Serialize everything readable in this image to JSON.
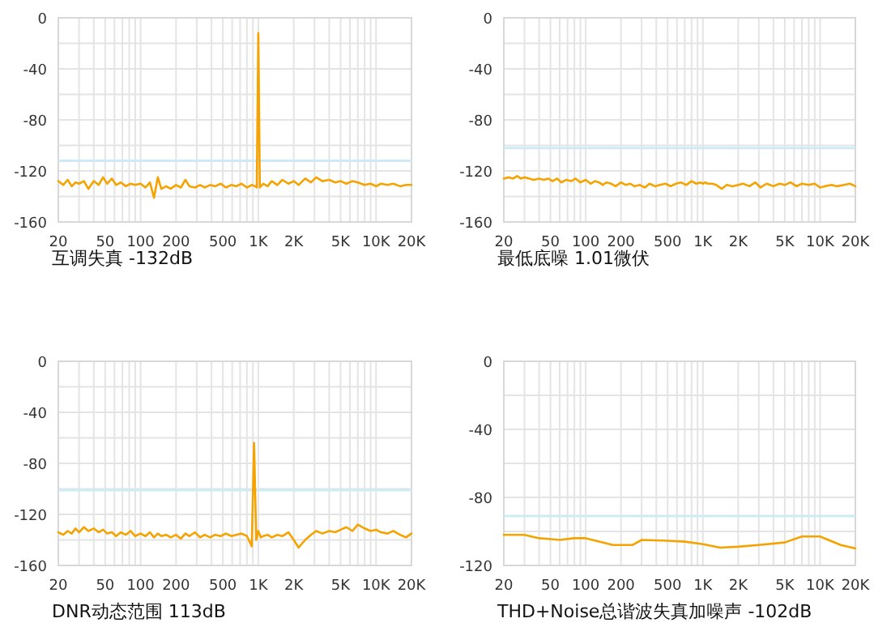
{
  "chart_data": [
    {
      "type": "line",
      "title": "互调失真 -132dB",
      "log": "x",
      "grid": true,
      "xlim": [
        20,
        20000
      ],
      "ylim": [
        -160,
        0
      ],
      "xticks": [
        20,
        {
          "value": 30,
          "label": null
        },
        {
          "value": 40,
          "label": null
        },
        50,
        {
          "value": 60,
          "label": null
        },
        {
          "value": 70,
          "label": null
        },
        {
          "value": 80,
          "label": null
        },
        {
          "value": 90,
          "label": null
        },
        100,
        200,
        {
          "value": 300,
          "label": null
        },
        {
          "value": 400,
          "label": null
        },
        500,
        {
          "value": 600,
          "label": null
        },
        {
          "value": 700,
          "label": null
        },
        {
          "value": 800,
          "label": null
        },
        {
          "value": 900,
          "label": null
        },
        {
          "value": 1000,
          "label": "1K"
        },
        {
          "value": 2000,
          "label": "2K"
        },
        {
          "value": 3000,
          "label": null
        },
        {
          "value": 4000,
          "label": null
        },
        {
          "value": 5000,
          "label": "5K"
        },
        {
          "value": 6000,
          "label": null
        },
        {
          "value": 7000,
          "label": null
        },
        {
          "value": 8000,
          "label": null
        },
        {
          "value": 9000,
          "label": null
        },
        {
          "value": 10000,
          "label": "10K"
        },
        {
          "value": 20000,
          "label": "20K"
        }
      ],
      "yticks": [
        -160,
        {
          "value": -140,
          "label": null
        },
        -120,
        {
          "value": -100,
          "label": null
        },
        -80,
        {
          "value": -60,
          "label": null
        },
        -40,
        {
          "value": -20,
          "label": null
        },
        0
      ],
      "ref_lines": [
        {
          "axis": "y",
          "value": -112,
          "color": "#cdeaf7"
        }
      ],
      "series": [
        {
          "color": "#f5a300",
          "x": [
            20,
            22,
            24,
            26,
            28,
            30,
            33,
            36,
            40,
            44,
            48,
            52,
            57,
            62,
            68,
            75,
            82,
            90,
            100,
            110,
            120,
            130,
            140,
            150,
            165,
            180,
            200,
            220,
            240,
            260,
            290,
            320,
            350,
            390,
            430,
            480,
            530,
            590,
            650,
            720,
            800,
            880,
            940,
            970,
            1000,
            1030,
            1100,
            1200,
            1300,
            1450,
            1600,
            1800,
            2000,
            2200,
            2500,
            2800,
            3100,
            3500,
            4000,
            4500,
            5000,
            5600,
            6300,
            7000,
            8000,
            9000,
            10000,
            11000,
            12500,
            14000,
            16000,
            18000,
            20000
          ],
          "values": [
            -128,
            -131,
            -127,
            -132,
            -129,
            -130,
            -128,
            -134,
            -128,
            -131,
            -125,
            -130,
            -126,
            -131,
            -129,
            -132,
            -130,
            -131,
            -130,
            -133,
            -129,
            -141,
            -125,
            -134,
            -132,
            -134,
            -131,
            -133,
            -127,
            -132,
            -133,
            -131,
            -133,
            -131,
            -132,
            -130,
            -133,
            -131,
            -132,
            -130,
            -133,
            -131,
            -132,
            -133,
            -12,
            -133,
            -130,
            -132,
            -128,
            -131,
            -127,
            -130,
            -128,
            -131,
            -126,
            -129,
            -125,
            -128,
            -127,
            -129,
            -128,
            -130,
            -128,
            -129,
            -131,
            -130,
            -132,
            -130,
            -131,
            -130,
            -132,
            -131,
            -131
          ]
        }
      ]
    },
    {
      "type": "line",
      "title": "最低底噪 1.01微伏",
      "log": "x",
      "grid": true,
      "xlim": [
        20,
        20000
      ],
      "ylim": [
        -160,
        0
      ],
      "xticks": [
        20,
        {
          "value": 30,
          "label": null
        },
        {
          "value": 40,
          "label": null
        },
        50,
        {
          "value": 60,
          "label": null
        },
        {
          "value": 70,
          "label": null
        },
        {
          "value": 80,
          "label": null
        },
        {
          "value": 90,
          "label": null
        },
        100,
        200,
        {
          "value": 300,
          "label": null
        },
        {
          "value": 400,
          "label": null
        },
        500,
        {
          "value": 600,
          "label": null
        },
        {
          "value": 700,
          "label": null
        },
        {
          "value": 800,
          "label": null
        },
        {
          "value": 900,
          "label": null
        },
        {
          "value": 1000,
          "label": "1K"
        },
        {
          "value": 2000,
          "label": "2K"
        },
        {
          "value": 3000,
          "label": null
        },
        {
          "value": 4000,
          "label": null
        },
        {
          "value": 5000,
          "label": "5K"
        },
        {
          "value": 6000,
          "label": null
        },
        {
          "value": 7000,
          "label": null
        },
        {
          "value": 8000,
          "label": null
        },
        {
          "value": 9000,
          "label": null
        },
        {
          "value": 10000,
          "label": "10K"
        },
        {
          "value": 20000,
          "label": "20K"
        }
      ],
      "yticks": [
        -160,
        {
          "value": -140,
          "label": null
        },
        -120,
        {
          "value": -100,
          "label": null
        },
        -80,
        {
          "value": -60,
          "label": null
        },
        -40,
        {
          "value": -20,
          "label": null
        },
        0
      ],
      "ref_lines": [
        {
          "axis": "y",
          "value": -102,
          "color": "#cdeaf7"
        }
      ],
      "series": [
        {
          "color": "#f5a300",
          "x": [
            20,
            22,
            24,
            26,
            28,
            30,
            33,
            36,
            40,
            44,
            48,
            52,
            57,
            62,
            68,
            75,
            82,
            90,
            100,
            110,
            120,
            130,
            140,
            150,
            165,
            180,
            200,
            220,
            240,
            260,
            290,
            320,
            350,
            390,
            430,
            480,
            530,
            590,
            650,
            720,
            800,
            880,
            950,
            1000,
            1050,
            1100,
            1200,
            1300,
            1450,
            1600,
            1800,
            2000,
            2200,
            2500,
            2800,
            3100,
            3500,
            4000,
            4500,
            5000,
            5600,
            6300,
            7000,
            8000,
            9000,
            10000,
            11000,
            12500,
            14000,
            16000,
            18000,
            20000
          ],
          "values": [
            -126,
            -125,
            -126,
            -124,
            -126,
            -125,
            -126,
            -127,
            -126,
            -127,
            -126,
            -128,
            -126,
            -129,
            -127,
            -128,
            -126,
            -129,
            -127,
            -130,
            -128,
            -129,
            -131,
            -129,
            -130,
            -132,
            -129,
            -131,
            -130,
            -132,
            -131,
            -133,
            -130,
            -132,
            -131,
            -130,
            -132,
            -130,
            -129,
            -131,
            -128,
            -130,
            -129,
            -130,
            -129,
            -130,
            -130,
            -131,
            -134,
            -131,
            -132,
            -131,
            -130,
            -132,
            -129,
            -133,
            -130,
            -132,
            -130,
            -131,
            -129,
            -132,
            -130,
            -131,
            -130,
            -133,
            -132,
            -131,
            -132,
            -131,
            -130,
            -132
          ]
        }
      ]
    },
    {
      "type": "line",
      "title": "DNR动态范围 113dB",
      "log": "x",
      "grid": true,
      "xlim": [
        20,
        20000
      ],
      "ylim": [
        -160,
        0
      ],
      "xticks": [
        20,
        {
          "value": 30,
          "label": null
        },
        {
          "value": 40,
          "label": null
        },
        50,
        {
          "value": 60,
          "label": null
        },
        {
          "value": 70,
          "label": null
        },
        {
          "value": 80,
          "label": null
        },
        {
          "value": 90,
          "label": null
        },
        100,
        200,
        {
          "value": 300,
          "label": null
        },
        {
          "value": 400,
          "label": null
        },
        500,
        {
          "value": 600,
          "label": null
        },
        {
          "value": 700,
          "label": null
        },
        {
          "value": 800,
          "label": null
        },
        {
          "value": 900,
          "label": null
        },
        {
          "value": 1000,
          "label": "1K"
        },
        {
          "value": 2000,
          "label": "2K"
        },
        {
          "value": 3000,
          "label": null
        },
        {
          "value": 4000,
          "label": null
        },
        {
          "value": 5000,
          "label": "5K"
        },
        {
          "value": 6000,
          "label": null
        },
        {
          "value": 7000,
          "label": null
        },
        {
          "value": 8000,
          "label": null
        },
        {
          "value": 9000,
          "label": null
        },
        {
          "value": 10000,
          "label": "10K"
        },
        {
          "value": 20000,
          "label": "20K"
        }
      ],
      "yticks": [
        -160,
        {
          "value": -140,
          "label": null
        },
        -120,
        {
          "value": -100,
          "label": null
        },
        -80,
        {
          "value": -60,
          "label": null
        },
        -40,
        {
          "value": -20,
          "label": null
        },
        0
      ],
      "ref_lines": [
        {
          "axis": "y",
          "value": -101,
          "color": "#cdeaf7"
        }
      ],
      "series": [
        {
          "color": "#f5a300",
          "x": [
            20,
            22,
            24,
            26,
            28,
            30,
            33,
            36,
            40,
            44,
            48,
            52,
            57,
            62,
            68,
            75,
            82,
            90,
            100,
            110,
            120,
            130,
            140,
            150,
            165,
            180,
            200,
            220,
            240,
            260,
            290,
            320,
            350,
            390,
            430,
            480,
            530,
            590,
            650,
            720,
            800,
            880,
            920,
            960,
            1000,
            1050,
            1100,
            1200,
            1300,
            1450,
            1600,
            1800,
            2000,
            2200,
            2500,
            2800,
            3100,
            3500,
            4000,
            4500,
            5000,
            5600,
            6300,
            7000,
            8000,
            9000,
            10000,
            11000,
            12500,
            14000,
            16000,
            18000,
            20000
          ],
          "values": [
            -134,
            -136,
            -133,
            -135,
            -131,
            -134,
            -130,
            -133,
            -131,
            -134,
            -132,
            -135,
            -134,
            -137,
            -134,
            -136,
            -133,
            -137,
            -135,
            -137,
            -134,
            -138,
            -135,
            -137,
            -136,
            -138,
            -136,
            -139,
            -135,
            -137,
            -134,
            -138,
            -136,
            -138,
            -136,
            -137,
            -135,
            -137,
            -136,
            -135,
            -137,
            -145,
            -64,
            -140,
            -133,
            -138,
            -137,
            -136,
            -138,
            -136,
            -137,
            -134,
            -140,
            -146,
            -140,
            -136,
            -133,
            -135,
            -133,
            -134,
            -132,
            -130,
            -133,
            -128,
            -131,
            -133,
            -132,
            -134,
            -135,
            -133,
            -136,
            -138,
            -135
          ]
        }
      ]
    },
    {
      "type": "line",
      "title": "THD+Noise总谐波失真加噪声 -102dB",
      "log": "x",
      "grid": true,
      "xlim": [
        20,
        20000
      ],
      "ylim": [
        -120,
        0
      ],
      "xticks": [
        20,
        {
          "value": 30,
          "label": null
        },
        {
          "value": 40,
          "label": null
        },
        50,
        {
          "value": 60,
          "label": null
        },
        {
          "value": 70,
          "label": null
        },
        {
          "value": 80,
          "label": null
        },
        {
          "value": 90,
          "label": null
        },
        100,
        200,
        {
          "value": 300,
          "label": null
        },
        {
          "value": 400,
          "label": null
        },
        500,
        {
          "value": 600,
          "label": null
        },
        {
          "value": 700,
          "label": null
        },
        {
          "value": 800,
          "label": null
        },
        {
          "value": 900,
          "label": null
        },
        {
          "value": 1000,
          "label": "1K"
        },
        {
          "value": 2000,
          "label": "2K"
        },
        {
          "value": 3000,
          "label": null
        },
        {
          "value": 4000,
          "label": null
        },
        {
          "value": 5000,
          "label": "5K"
        },
        {
          "value": 6000,
          "label": null
        },
        {
          "value": 7000,
          "label": null
        },
        {
          "value": 8000,
          "label": null
        },
        {
          "value": 9000,
          "label": null
        },
        {
          "value": 10000,
          "label": "10K"
        },
        {
          "value": 20000,
          "label": "20K"
        }
      ],
      "yticks": [
        -120,
        {
          "value": -100,
          "label": null
        },
        -80,
        {
          "value": -60,
          "label": null
        },
        -40,
        {
          "value": -20,
          "label": null
        },
        0
      ],
      "ref_lines": [
        {
          "axis": "y",
          "value": -91,
          "color": "#cdeaf7"
        }
      ],
      "series": [
        {
          "color": "#f5a300",
          "x": [
            20,
            30,
            40,
            50,
            60,
            80,
            100,
            130,
            170,
            250,
            300,
            500,
            700,
            1000,
            1400,
            2000,
            3000,
            5000,
            7000,
            10000,
            15000,
            20000
          ],
          "values": [
            -102,
            -102,
            -104,
            -104.5,
            -105,
            -104,
            -104,
            -106,
            -108,
            -108,
            -105,
            -105.5,
            -106,
            -107.5,
            -109.5,
            -109,
            -108,
            -106.5,
            -103,
            -103,
            -108,
            -110
          ]
        }
      ]
    }
  ]
}
